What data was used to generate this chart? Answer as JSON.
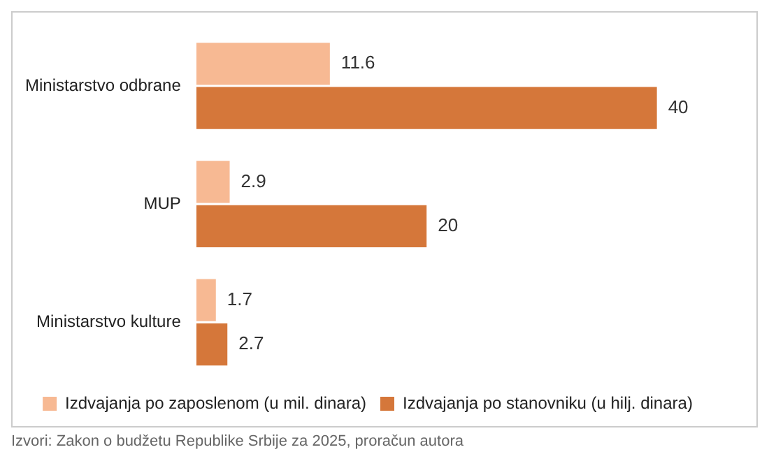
{
  "chart_data": {
    "type": "bar",
    "orientation": "horizontal",
    "categories": [
      "Ministarstvo odbrane",
      "MUP",
      "Ministarstvo kulture"
    ],
    "series": [
      {
        "name": "Izdvajanja po zaposlenom (u mil. dinara)",
        "color": "#f7b993",
        "values": [
          11.6,
          2.9,
          1.7
        ]
      },
      {
        "name": "Izdvajanja po stanovniku (u hilj. dinara)",
        "color": "#d5773a",
        "values": [
          40,
          20,
          2.7
        ]
      }
    ],
    "data_labels": true,
    "legend": "bottom",
    "annotations": [
      "Izvori: Zakon o budžetu Republike Srbije za 2025, proračun autora"
    ]
  }
}
